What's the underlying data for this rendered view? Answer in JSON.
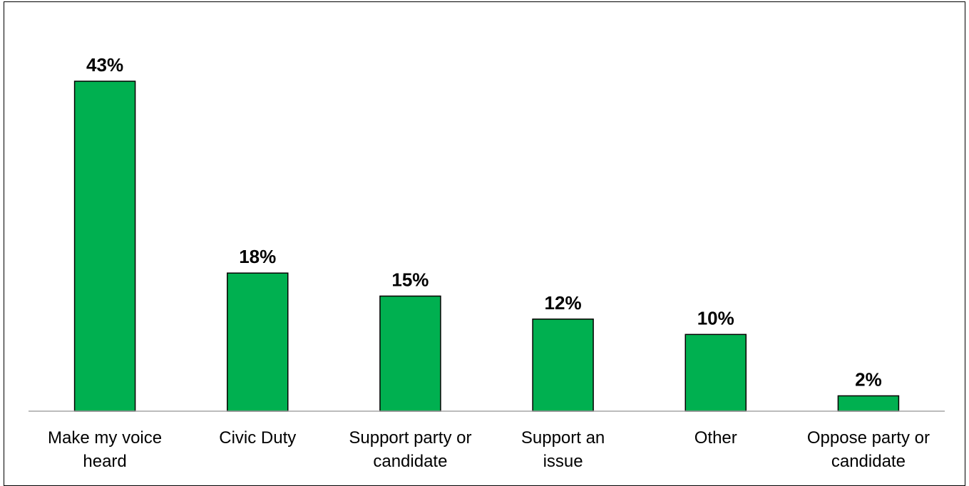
{
  "chart_data": {
    "type": "bar",
    "title": "",
    "xlabel": "",
    "ylabel": "",
    "categories": [
      [
        "Make my voice",
        "heard"
      ],
      [
        "Civic Duty"
      ],
      [
        "Support party or",
        "candidate"
      ],
      [
        "Support an",
        "issue"
      ],
      [
        "Other"
      ],
      [
        "Oppose party or",
        "candidate"
      ]
    ],
    "values": [
      43,
      18,
      15,
      12,
      10,
      2
    ],
    "value_labels": [
      "43%",
      "18%",
      "15%",
      "12%",
      "10%",
      "2%"
    ],
    "ylim": [
      0,
      43
    ],
    "grid": false,
    "legend": "none",
    "bar_color": "#00b050",
    "bar_outline": "#000000",
    "axis_color": "#a6a6a6"
  }
}
